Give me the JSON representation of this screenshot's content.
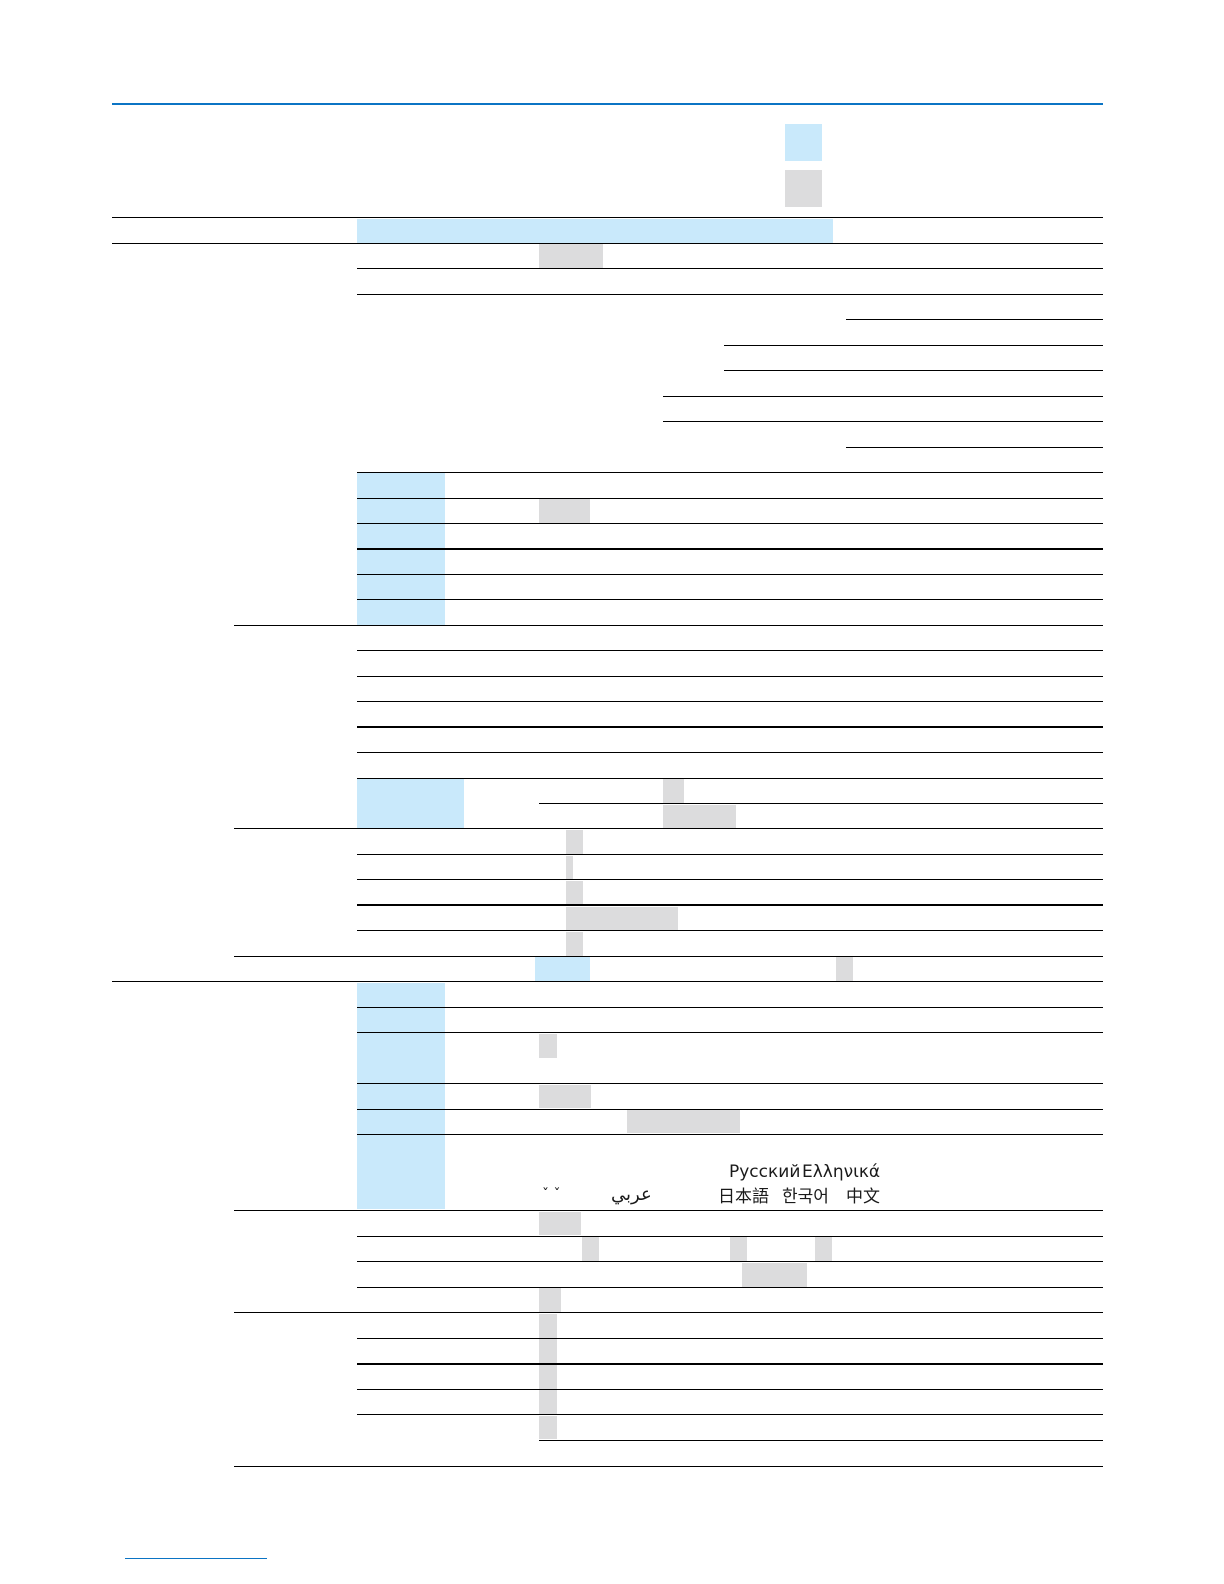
{
  "languages": {
    "line1": [
      "Русский",
      "Ελληνικά"
    ],
    "line2": [
      "ˇ ˇ",
      "عربي",
      "日本語",
      "한국어",
      "中文"
    ]
  },
  "colors": {
    "accent": "#0b74c4",
    "highlight_blue": "#c9e9fb",
    "highlight_gray": "#dcdcdd"
  }
}
